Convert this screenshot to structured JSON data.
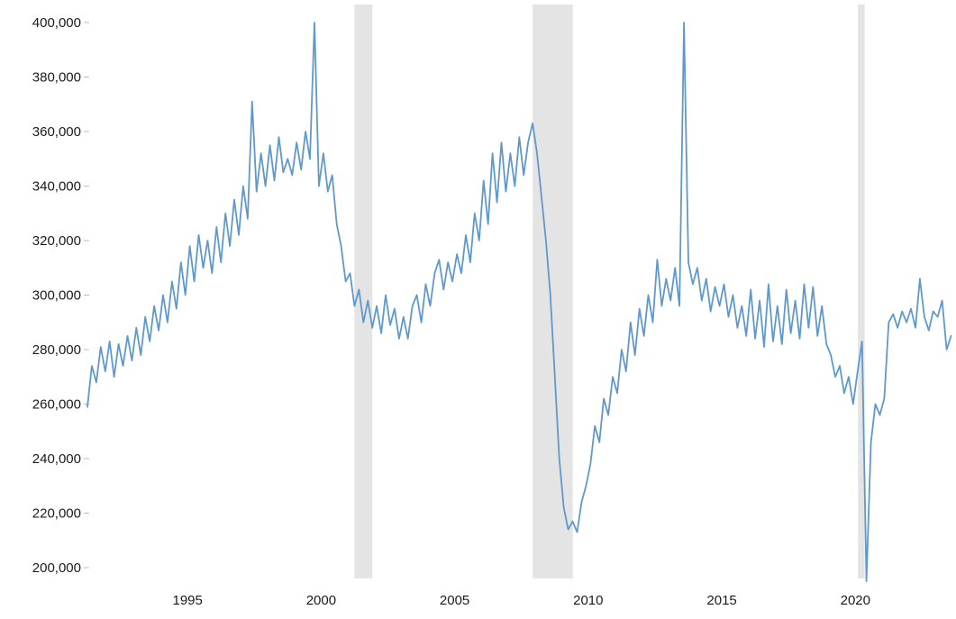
{
  "chart_data": {
    "type": "line",
    "title": "",
    "xlabel": "",
    "ylabel": "",
    "legend": "none",
    "grid": false,
    "line_color": "#5f99cc",
    "band_color": "#e4e4e4",
    "ylim": [
      195000,
      402000
    ],
    "xlim": [
      1991.25,
      2023.6
    ],
    "y_ticks": [
      {
        "value": 200000,
        "label": "200,000"
      },
      {
        "value": 220000,
        "label": "220,000"
      },
      {
        "value": 240000,
        "label": "240,000"
      },
      {
        "value": 260000,
        "label": "260,000"
      },
      {
        "value": 280000,
        "label": "280,000"
      },
      {
        "value": 300000,
        "label": "300,000"
      },
      {
        "value": 320000,
        "label": "320,000"
      },
      {
        "value": 340000,
        "label": "340,000"
      },
      {
        "value": 360000,
        "label": "360,000"
      },
      {
        "value": 380000,
        "label": "380,000"
      },
      {
        "value": 400000,
        "label": "400,000"
      }
    ],
    "x_ticks": [
      {
        "value": 1995,
        "label": "1995"
      },
      {
        "value": 2000,
        "label": "2000"
      },
      {
        "value": 2005,
        "label": "2005"
      },
      {
        "value": 2010,
        "label": "2010"
      },
      {
        "value": 2015,
        "label": "2015"
      },
      {
        "value": 2020,
        "label": "2020"
      }
    ],
    "recession_bands": [
      {
        "start": 2001.25,
        "end": 2001.92
      },
      {
        "start": 2007.92,
        "end": 2009.42
      },
      {
        "start": 2020.1,
        "end": 2020.35
      }
    ],
    "series_x_start": 1991.25,
    "series_x_step_years": 0.166667,
    "values": [
      259000,
      274000,
      268000,
      281000,
      272000,
      283000,
      270000,
      282000,
      274000,
      285000,
      276000,
      288000,
      278000,
      292000,
      283000,
      296000,
      287000,
      300000,
      290000,
      305000,
      295000,
      312000,
      300000,
      318000,
      305000,
      322000,
      310000,
      320000,
      308000,
      325000,
      312000,
      330000,
      318000,
      335000,
      322000,
      340000,
      328000,
      371000,
      338000,
      352000,
      340000,
      355000,
      342000,
      358000,
      345000,
      350000,
      344000,
      356000,
      346000,
      360000,
      350000,
      400000,
      340000,
      352000,
      338000,
      344000,
      326000,
      318000,
      305000,
      308000,
      296000,
      302000,
      290000,
      298000,
      288000,
      296000,
      286000,
      300000,
      289000,
      295000,
      284000,
      292000,
      284000,
      296000,
      300000,
      290000,
      304000,
      296000,
      308000,
      313000,
      302000,
      312000,
      305000,
      315000,
      308000,
      322000,
      312000,
      330000,
      320000,
      342000,
      326000,
      352000,
      334000,
      356000,
      338000,
      352000,
      340000,
      358000,
      344000,
      356000,
      363000,
      352000,
      336000,
      320000,
      300000,
      270000,
      240000,
      222000,
      214000,
      217000,
      213000,
      224000,
      230000,
      238000,
      252000,
      246000,
      262000,
      256000,
      270000,
      264000,
      280000,
      272000,
      290000,
      278000,
      295000,
      285000,
      300000,
      290000,
      313000,
      296000,
      306000,
      298000,
      310000,
      296000,
      400000,
      312000,
      304000,
      310000,
      298000,
      306000,
      294000,
      303000,
      296000,
      304000,
      292000,
      300000,
      288000,
      296000,
      285000,
      302000,
      284000,
      298000,
      281000,
      304000,
      283000,
      296000,
      282000,
      302000,
      286000,
      298000,
      284000,
      304000,
      288000,
      303000,
      285000,
      296000,
      282000,
      278000,
      270000,
      274000,
      264000,
      270000,
      260000,
      272000,
      283000,
      195000,
      246000,
      260000,
      256000,
      262000,
      290000,
      293000,
      288000,
      294000,
      290000,
      295000,
      288000,
      306000,
      292000,
      287000,
      294000,
      292000,
      298000,
      280000,
      285000
    ]
  }
}
